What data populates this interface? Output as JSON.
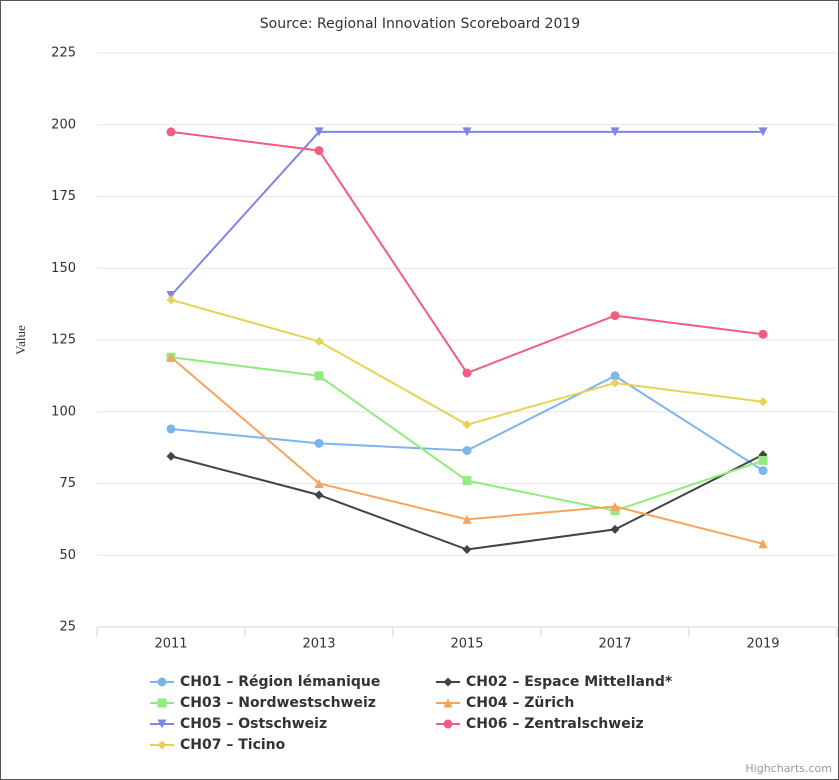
{
  "chart_data": {
    "type": "line",
    "title": "Source: Regional Innovation Scoreboard 2019",
    "y_label": "Value",
    "credits": "Highcharts.com",
    "categories": [
      "2011",
      "2013",
      "2015",
      "2017",
      "2019"
    ],
    "ylim": [
      25,
      225
    ],
    "yticks": [
      25,
      50,
      75,
      100,
      125,
      150,
      175,
      200,
      225
    ],
    "grid": true,
    "legend": "bottom",
    "series": [
      {
        "name": "CH01 – Région lémanique",
        "color": "#7cb5ec",
        "marker": "circle",
        "values": [
          94,
          89,
          86.5,
          112.5,
          79.5
        ]
      },
      {
        "name": "CH02 – Espace Mittelland*",
        "color": "#434348",
        "marker": "diamond",
        "values": [
          84.5,
          71,
          52,
          59,
          85
        ]
      },
      {
        "name": "CH03 – Nordwestschweiz",
        "color": "#90ed7d",
        "marker": "square",
        "values": [
          119,
          112.5,
          76,
          65.5,
          83
        ]
      },
      {
        "name": "CH04 – Zürich",
        "color": "#f7a35c",
        "marker": "triangle",
        "values": [
          119,
          75,
          62.5,
          67,
          54
        ]
      },
      {
        "name": "CH05 – Ostschweiz",
        "color": "#8085e9",
        "marker": "triangle-down",
        "values": [
          140.5,
          197.5,
          197.5,
          197.5,
          197.5
        ]
      },
      {
        "name": "CH06 – Zentralschweiz",
        "color": "#f15c80",
        "marker": "circle",
        "values": [
          197.5,
          191,
          113.5,
          133.5,
          127
        ]
      },
      {
        "name": "CH07 – Ticino",
        "color": "#e4d354",
        "marker": "diamond",
        "values": [
          139,
          124.5,
          95.5,
          110,
          103.5
        ]
      }
    ]
  }
}
